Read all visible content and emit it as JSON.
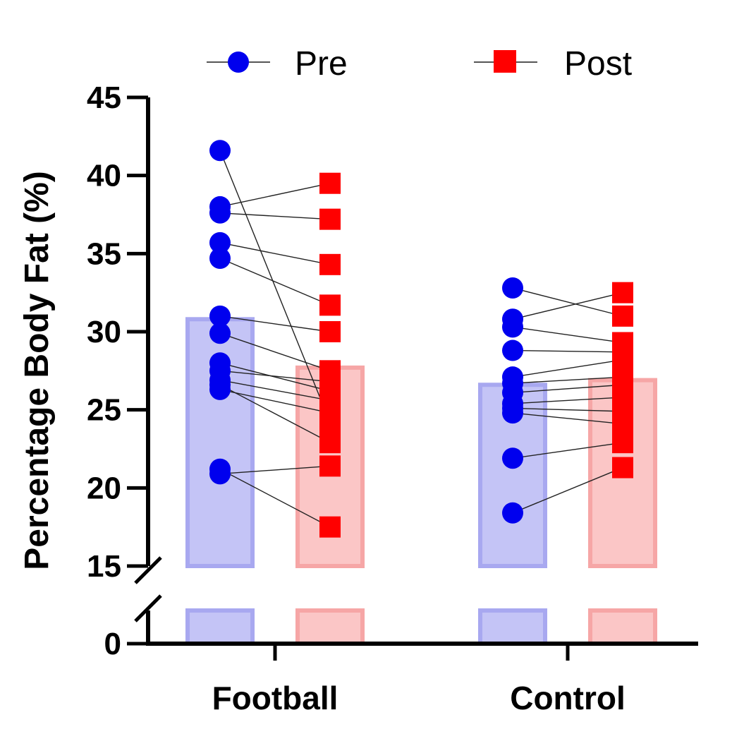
{
  "chart_data": {
    "type": "bar",
    "title": "",
    "xlabel": "",
    "ylabel": "Percentage Body Fat (%)",
    "categories": [
      "Football",
      "Control"
    ],
    "ylim": [
      0,
      45
    ],
    "axis_break": [
      0,
      15
    ],
    "yticks": [
      "0",
      "15",
      "20",
      "25",
      "30",
      "35",
      "40",
      "45"
    ],
    "legend": {
      "position": "top",
      "entries": [
        "Pre",
        "Post"
      ]
    },
    "colors": {
      "pre_marker": "#0000ee",
      "post_marker": "#ff0000",
      "pre_bar_fill": "#c4c4f6",
      "pre_bar_edge": "#a8a8f0",
      "post_bar_fill": "#fbc6c6",
      "post_bar_edge": "#f6a6a6"
    },
    "series": [
      {
        "name": "Pre",
        "means": [
          30.8,
          26.6
        ]
      },
      {
        "name": "Post",
        "means": [
          27.7,
          26.9
        ]
      }
    ],
    "paired": [
      {
        "category": "Football",
        "pairs": [
          [
            41.6,
            24.2
          ],
          [
            38.0,
            39.5
          ],
          [
            37.6,
            37.2
          ],
          [
            35.7,
            34.3
          ],
          [
            34.7,
            31.7
          ],
          [
            31.0,
            30.0
          ],
          [
            29.9,
            27.5
          ],
          [
            27.5,
            26.8
          ],
          [
            26.9,
            25.6
          ],
          [
            26.3,
            24.8
          ],
          [
            20.9,
            21.4
          ],
          [
            28.0,
            26.2
          ],
          [
            26.6,
            22.9
          ],
          [
            21.2,
            17.5
          ]
        ]
      },
      {
        "category": "Control",
        "pairs": [
          [
            32.8,
            31.0
          ],
          [
            30.8,
            32.5
          ],
          [
            30.3,
            29.3
          ],
          [
            28.8,
            28.7
          ],
          [
            27.1,
            28.2
          ],
          [
            26.7,
            27.1
          ],
          [
            26.1,
            26.6
          ],
          [
            25.4,
            25.8
          ],
          [
            25.1,
            24.9
          ],
          [
            24.8,
            24.1
          ],
          [
            21.9,
            22.9
          ],
          [
            18.4,
            21.3
          ]
        ]
      }
    ]
  }
}
